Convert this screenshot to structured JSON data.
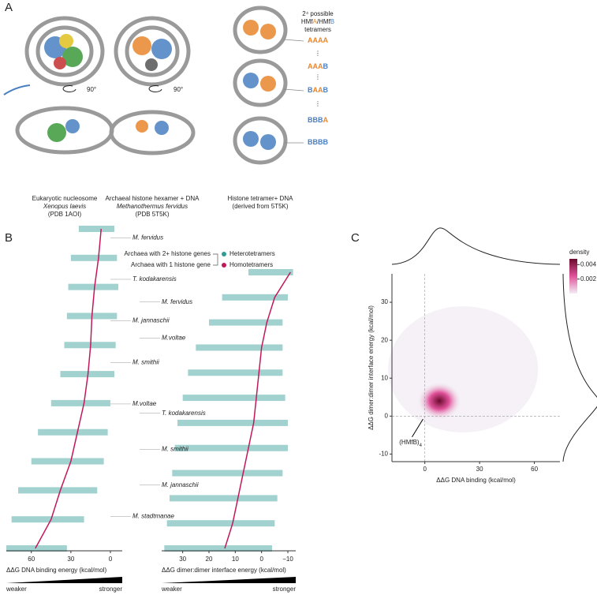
{
  "panel_labels": [
    "A",
    "B",
    "C"
  ],
  "panel_a": {
    "captions": [
      [
        "Eukaryotic nucleosome",
        "Xenopus laevis",
        "(PDB 1AOI)"
      ],
      [
        "Archaeal histone hexamer + DNA",
        "Methanothermus fervidus",
        "(PDB 5T5K)"
      ],
      [
        "Histone tetramer+ DNA",
        "(derived from 5T5K)"
      ]
    ],
    "rotation": [
      "90°",
      "90°"
    ],
    "tetramer_header": [
      "2⁴ possible",
      "HMfA/HMfB",
      "tetramers"
    ],
    "tetramers": [
      "AAAA",
      "AAAB",
      "BAAB",
      "BBBA",
      "BBBB"
    ],
    "dots": "⋮",
    "letter_colors": {
      "A": "#e8872e",
      "B": "#4a7fc1"
    }
  },
  "legend": {
    "groups": [
      "Archaea with 2+ histone genes",
      "Archaea with 1 histone gene"
    ],
    "entries": [
      {
        "name": "Heterotetramers",
        "color": "#2e9c95"
      },
      {
        "name": "Homotetramers",
        "color": "#c2185b"
      }
    ]
  },
  "chart_data": [
    {
      "type": "strip",
      "xlabel": "ΔΔG DNA binding energy (kcal/mol)",
      "xlim": [
        79,
        -9
      ],
      "xticks": [
        60,
        30,
        0
      ],
      "scale_labels": [
        "weaker",
        "stronger"
      ],
      "annotations": [
        "M. fervidus",
        "T. kodakarensis",
        "M. jannaschii",
        "M. smithii",
        "M.voltae",
        "M. stadtmanae"
      ],
      "range_color": "#2e9c95",
      "lo": [
        -3,
        -5,
        -6,
        -5,
        -4,
        -3,
        0,
        2,
        5,
        10,
        20,
        33
      ],
      "hi": [
        24,
        30,
        32,
        33,
        35,
        38,
        45,
        55,
        60,
        70,
        75,
        79
      ],
      "series": [
        {
          "name": "Homotetramers",
          "color": "#c2185b",
          "values": [
            7,
            9,
            12,
            14,
            15,
            17,
            20,
            25,
            30,
            38,
            45,
            57
          ]
        }
      ]
    },
    {
      "type": "strip",
      "xlabel": "ΔΔG dimer:dimer interface energy (kcal/mol)",
      "xlim": [
        38,
        -13
      ],
      "xticks": [
        30,
        20,
        10,
        0,
        {
          "value": -10,
          "label": "−10"
        }
      ],
      "scale_labels": [
        "weaker",
        "stronger"
      ],
      "annotations": [
        "M. fervidus",
        "M.voltae",
        "T. kodakarensis",
        "M. smithii",
        "M. jannaschii"
      ],
      "range_color": "#2e9c95",
      "lo": [
        -12,
        -10,
        -8,
        -8,
        -8,
        -9,
        -10,
        -10,
        -8,
        -6,
        -5,
        -4
      ],
      "hi": [
        5,
        15,
        20,
        25,
        28,
        30,
        32,
        33,
        34,
        35,
        36,
        37
      ],
      "series": [
        {
          "name": "Homotetramers",
          "color": "#c2185b",
          "values": [
            -11,
            -5,
            -2,
            0,
            1,
            2,
            3,
            5,
            7,
            9,
            11,
            14
          ]
        }
      ]
    },
    {
      "type": "density",
      "xlabel": "ΔΔG DNA binding (kcal/mol)",
      "ylabel": "ΔΔG dimer:dimer interface energy (kcal/mol)",
      "xlim": [
        -18,
        74
      ],
      "xticks": [
        0,
        30,
        60
      ],
      "ylim": [
        -12,
        37.5
      ],
      "yticks": [
        -10,
        0,
        10,
        20,
        30
      ],
      "colorbar_title": "density",
      "clim": [
        0,
        0.0048
      ],
      "cticks": [
        0.002,
        0.004
      ],
      "colors": [
        "#f3eef5",
        "#e0529a",
        "#6b0a2c"
      ],
      "peak": {
        "x": 8,
        "y": 4,
        "density": 0.0048
      },
      "annotation": [
        "(HMfB)",
        "4"
      ]
    }
  ]
}
